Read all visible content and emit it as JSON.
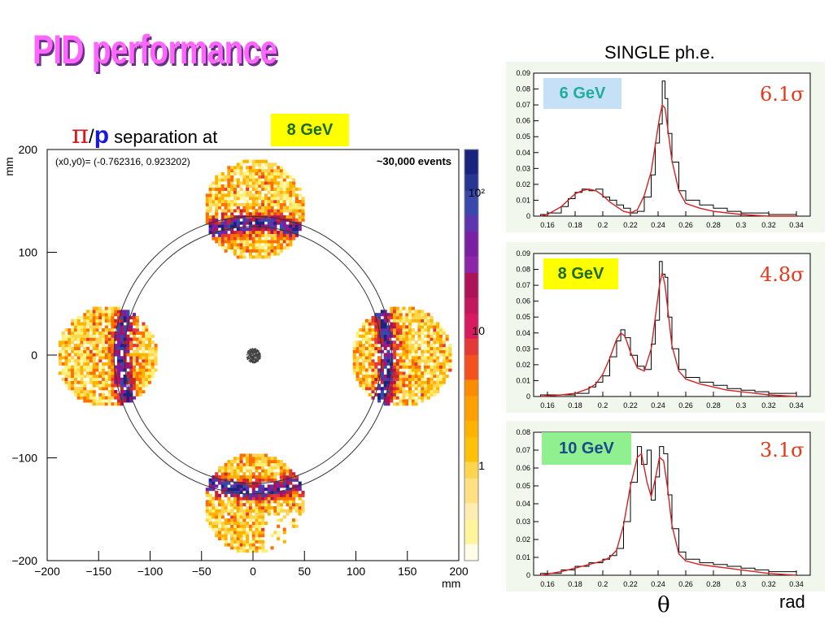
{
  "slide": {
    "title": "PID performance",
    "single_label": "SINGLE ph.e.",
    "separation": {
      "pi": "π",
      "slash": "/",
      "p": "p",
      "text": "separation at",
      "energy_tag": "8 GeV"
    },
    "theta_label": "θ",
    "rad_label": "rad"
  },
  "colors": {
    "title": "#ff66ff",
    "title_shadow": "#6b2f86",
    "fit": "#d42020",
    "hist": "#000000",
    "panel_bg": "#f2f7ee",
    "sigma": "#e23a1a"
  },
  "chart_data": [
    {
      "type": "heatmap",
      "title": "",
      "info": "(x0,y0)= (-0.762316, 0.923202)",
      "annotation": "~30,000 events",
      "xlabel": "mm",
      "ylabel": "mm",
      "xlim": [
        -200,
        200
      ],
      "ylim": [
        -200,
        200
      ],
      "xticks": [
        -200,
        -150,
        -100,
        -50,
        0,
        50,
        100,
        150,
        200
      ],
      "yticks": [
        -200,
        -100,
        0,
        100,
        200
      ],
      "colorbar": {
        "scale": "log",
        "ticks": [
          "10²",
          "10",
          "1"
        ]
      },
      "rings": [
        {
          "radius": 135
        },
        {
          "radius": 125
        }
      ],
      "spots": [
        {
          "x": 0,
          "y": 143
        },
        {
          "x": 143,
          "y": 0
        },
        {
          "x": 0,
          "y": -143
        },
        {
          "x": -143,
          "y": 0
        },
        {
          "x": 0,
          "y": 0
        }
      ]
    },
    {
      "type": "line",
      "label": "6 GeV",
      "sigma": "6.1σ",
      "xlim": [
        0.15,
        0.35
      ],
      "ylim": [
        0,
        0.09
      ],
      "xticks": [
        "0.16",
        "0.18",
        "0.2",
        "0.22",
        "0.24",
        "0.26",
        "0.28",
        "0.3",
        "0.32",
        "0.34"
      ],
      "yticks": [
        "0",
        "0.01",
        "0.02",
        "0.03",
        "0.04",
        "0.05",
        "0.06",
        "0.07",
        "0.08",
        "0.09"
      ],
      "x": [
        0.155,
        0.16,
        0.17,
        0.175,
        0.18,
        0.185,
        0.19,
        0.195,
        0.2,
        0.205,
        0.21,
        0.215,
        0.22,
        0.225,
        0.23,
        0.235,
        0.238,
        0.241,
        0.243,
        0.245,
        0.247,
        0.25,
        0.255,
        0.26,
        0.27,
        0.28,
        0.29,
        0.3,
        0.32,
        0.34
      ],
      "fit": [
        0.0,
        0.001,
        0.006,
        0.01,
        0.014,
        0.016,
        0.017,
        0.016,
        0.013,
        0.009,
        0.006,
        0.003,
        0.002,
        0.004,
        0.013,
        0.028,
        0.045,
        0.062,
        0.07,
        0.068,
        0.055,
        0.035,
        0.016,
        0.008,
        0.005,
        0.003,
        0.002,
        0.001,
        0.0,
        0.0
      ],
      "hist": [
        0.001,
        0.002,
        0.006,
        0.011,
        0.015,
        0.017,
        0.016,
        0.017,
        0.012,
        0.01,
        0.007,
        0.005,
        0.002,
        0.003,
        0.012,
        0.026,
        0.046,
        0.058,
        0.085,
        0.074,
        0.052,
        0.034,
        0.016,
        0.01,
        0.007,
        0.005,
        0.003,
        0.002,
        0.001,
        0.0
      ]
    },
    {
      "type": "line",
      "label": "8 GeV",
      "sigma": "4.8σ",
      "xlim": [
        0.15,
        0.35
      ],
      "ylim": [
        0,
        0.09
      ],
      "xticks": [
        "0.16",
        "0.18",
        "0.2",
        "0.22",
        "0.24",
        "0.26",
        "0.28",
        "0.3",
        "0.32",
        "0.34"
      ],
      "yticks": [
        "0",
        "0.01",
        "0.02",
        "0.03",
        "0.04",
        "0.05",
        "0.06",
        "0.07",
        "0.08",
        "0.09"
      ],
      "x": [
        0.155,
        0.17,
        0.18,
        0.19,
        0.195,
        0.2,
        0.205,
        0.21,
        0.213,
        0.216,
        0.22,
        0.225,
        0.23,
        0.235,
        0.238,
        0.241,
        0.243,
        0.245,
        0.247,
        0.25,
        0.255,
        0.26,
        0.27,
        0.28,
        0.29,
        0.3,
        0.31,
        0.32,
        0.34
      ],
      "fit": [
        0.0,
        0.001,
        0.002,
        0.005,
        0.008,
        0.014,
        0.024,
        0.036,
        0.04,
        0.038,
        0.028,
        0.018,
        0.016,
        0.03,
        0.05,
        0.07,
        0.078,
        0.07,
        0.055,
        0.032,
        0.016,
        0.011,
        0.008,
        0.006,
        0.004,
        0.003,
        0.002,
        0.001,
        0.0
      ],
      "hist": [
        0.001,
        0.001,
        0.002,
        0.006,
        0.009,
        0.013,
        0.025,
        0.035,
        0.042,
        0.037,
        0.026,
        0.019,
        0.017,
        0.033,
        0.048,
        0.085,
        0.077,
        0.075,
        0.05,
        0.03,
        0.017,
        0.012,
        0.009,
        0.007,
        0.005,
        0.004,
        0.003,
        0.002,
        0.001
      ]
    },
    {
      "type": "line",
      "label": "10 GeV",
      "sigma": "3.1σ",
      "xlim": [
        0.15,
        0.35
      ],
      "ylim": [
        0,
        0.08
      ],
      "xticks": [
        "0.16",
        "0.18",
        "0.2",
        "0.22",
        "0.24",
        "0.26",
        "0.28",
        "0.3",
        "0.32",
        "0.34"
      ],
      "yticks": [
        "0",
        "0.01",
        "0.02",
        "0.03",
        "0.04",
        "0.05",
        "0.06",
        "0.07",
        "0.08"
      ],
      "x": [
        0.155,
        0.17,
        0.18,
        0.19,
        0.2,
        0.205,
        0.21,
        0.215,
        0.22,
        0.225,
        0.228,
        0.232,
        0.235,
        0.238,
        0.241,
        0.244,
        0.247,
        0.25,
        0.255,
        0.26,
        0.27,
        0.28,
        0.29,
        0.3,
        0.31,
        0.32,
        0.34
      ],
      "fit": [
        0.0,
        0.002,
        0.004,
        0.006,
        0.008,
        0.01,
        0.014,
        0.028,
        0.05,
        0.066,
        0.068,
        0.052,
        0.044,
        0.054,
        0.066,
        0.064,
        0.048,
        0.028,
        0.012,
        0.008,
        0.006,
        0.005,
        0.004,
        0.003,
        0.002,
        0.001,
        0.0
      ],
      "hist": [
        0.001,
        0.003,
        0.005,
        0.007,
        0.009,
        0.011,
        0.015,
        0.03,
        0.052,
        0.072,
        0.062,
        0.07,
        0.042,
        0.055,
        0.072,
        0.068,
        0.045,
        0.026,
        0.013,
        0.009,
        0.007,
        0.006,
        0.005,
        0.004,
        0.003,
        0.002,
        0.0
      ]
    }
  ]
}
